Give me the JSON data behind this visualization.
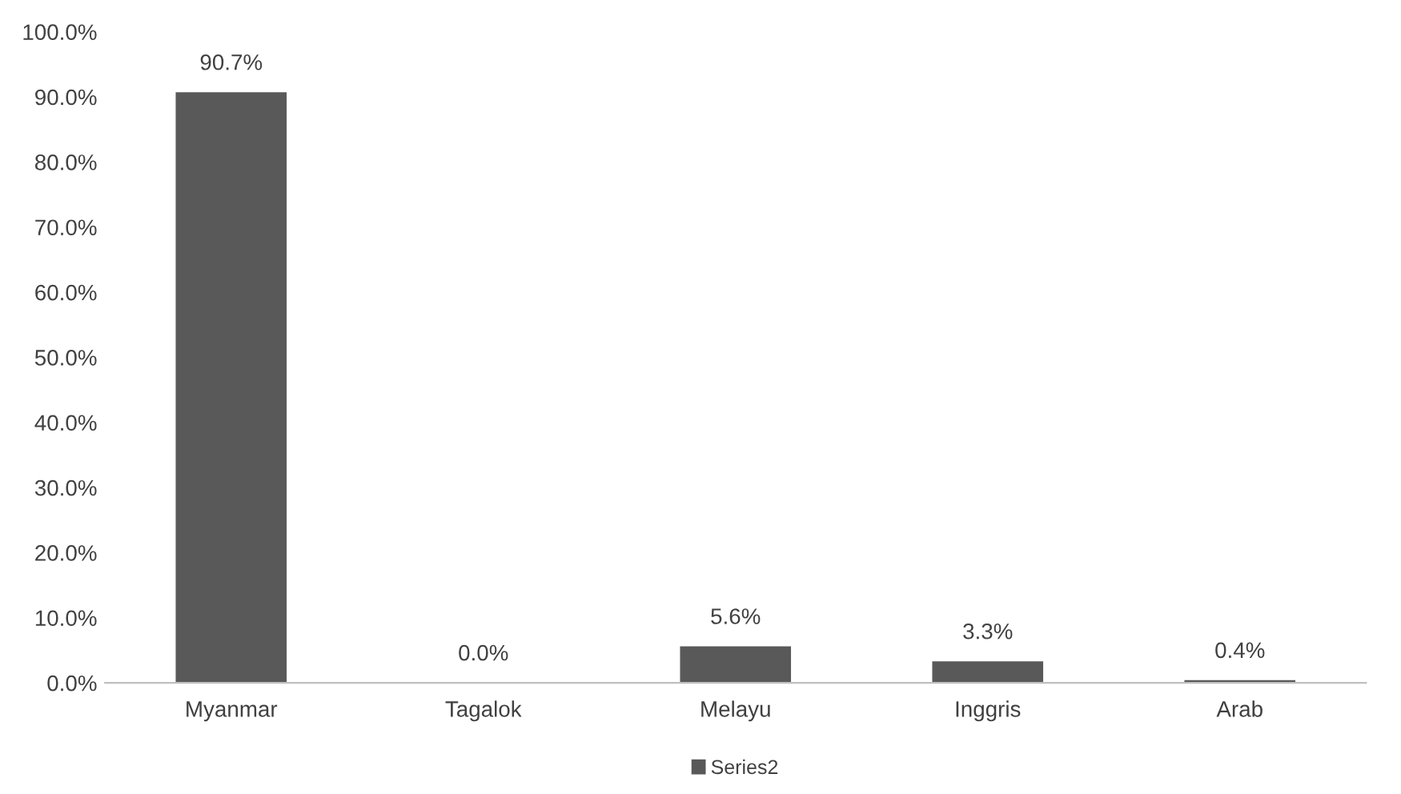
{
  "chart_data": {
    "type": "bar",
    "categories": [
      "Myanmar",
      "Tagalok",
      "Melayu",
      "Inggris",
      "Arab"
    ],
    "series": [
      {
        "name": "Series2",
        "color": "#595959",
        "values": [
          90.7,
          0.0,
          5.6,
          3.3,
          0.4
        ],
        "value_labels": [
          "90.7%",
          "0.0%",
          "5.6%",
          "3.3%",
          "0.4%"
        ]
      }
    ],
    "ylim": [
      0,
      100
    ],
    "yticks": [
      {
        "value": 0,
        "label": "0.0%"
      },
      {
        "value": 10,
        "label": "10.0%"
      },
      {
        "value": 20,
        "label": "20.0%"
      },
      {
        "value": 30,
        "label": "30.0%"
      },
      {
        "value": 40,
        "label": "40.0%"
      },
      {
        "value": 50,
        "label": "50.0%"
      },
      {
        "value": 60,
        "label": "60.0%"
      },
      {
        "value": 70,
        "label": "70.0%"
      },
      {
        "value": 80,
        "label": "80.0%"
      },
      {
        "value": 90,
        "label": "90.0%"
      },
      {
        "value": 100,
        "label": "100.0%"
      }
    ],
    "legend": "bottom"
  }
}
